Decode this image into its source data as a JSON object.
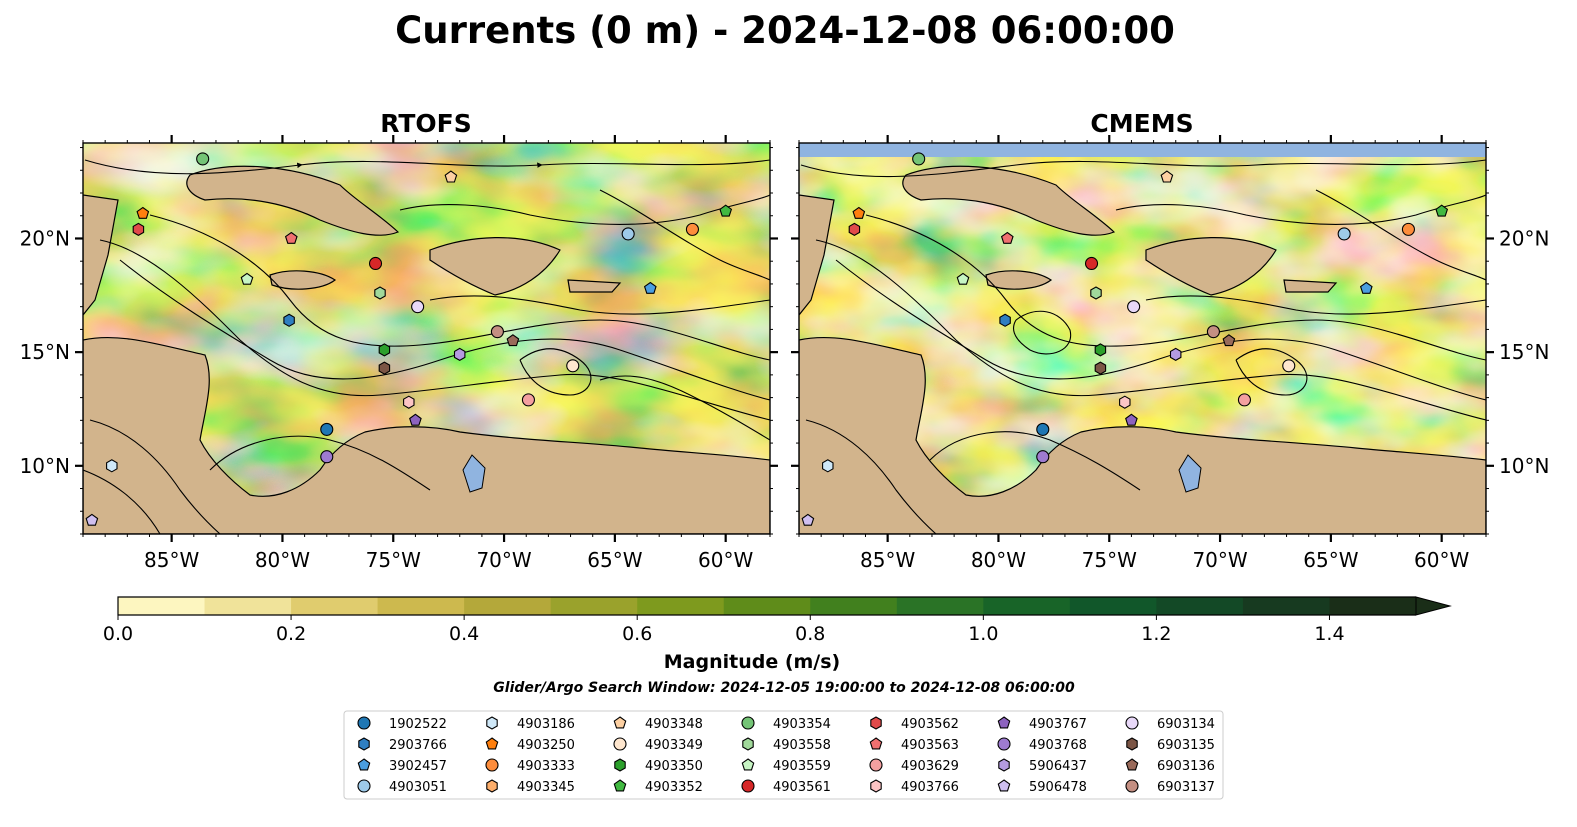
{
  "figure": {
    "suptitle": "Currents (0 m) - 2024-12-08 06:00:00"
  },
  "colors": {
    "land": "#d2b48c",
    "lake": "#90b4e0",
    "river": "#9fb8d8",
    "background": "#fffbd0"
  },
  "chart_data": [
    {
      "type": "heatmap",
      "title": "RTOFS",
      "xlim": [
        -89.0,
        -58.0
      ],
      "ylim": [
        7.0,
        24.2
      ],
      "xtick_values": [
        -85,
        -80,
        -75,
        -70,
        -65,
        -60
      ],
      "xticks": [
        "85°W",
        "80°W",
        "75°W",
        "70°W",
        "65°W",
        "60°W"
      ],
      "ytick_values": [
        10,
        15,
        20
      ],
      "yticks": [
        "10°N",
        "15°N",
        "20°N"
      ],
      "ytick_side": "left",
      "overlay": "streamlines",
      "floats": [
        {
          "id": "4903354",
          "lon": -83.6,
          "lat": 23.5
        },
        {
          "id": "4903348",
          "lon": -72.4,
          "lat": 22.7
        },
        {
          "id": "4903250",
          "lon": -86.3,
          "lat": 21.1
        },
        {
          "id": "4903562",
          "lon": -86.5,
          "lat": 20.4
        },
        {
          "id": "4903563",
          "lon": -79.6,
          "lat": 20.0
        },
        {
          "id": "4903352",
          "lon": -60.0,
          "lat": 21.2
        },
        {
          "id": "4903051",
          "lon": -64.4,
          "lat": 20.2
        },
        {
          "id": "4903333",
          "lon": -61.5,
          "lat": 20.4
        },
        {
          "id": "3902457",
          "lon": -63.4,
          "lat": 17.8
        },
        {
          "id": "4903561",
          "lon": -75.8,
          "lat": 18.9
        },
        {
          "id": "4903559",
          "lon": -81.6,
          "lat": 18.2
        },
        {
          "id": "4903558",
          "lon": -75.6,
          "lat": 17.6
        },
        {
          "id": "6903134",
          "lon": -73.9,
          "lat": 17.0
        },
        {
          "id": "2903766",
          "lon": -79.7,
          "lat": 16.4
        },
        {
          "id": "6903137",
          "lon": -70.3,
          "lat": 15.9
        },
        {
          "id": "6903136",
          "lon": -69.6,
          "lat": 15.5
        },
        {
          "id": "4903350",
          "lon": -75.4,
          "lat": 15.1
        },
        {
          "id": "5906437",
          "lon": -72.0,
          "lat": 14.9
        },
        {
          "id": "6903135",
          "lon": -75.4,
          "lat": 14.3
        },
        {
          "id": "4903349",
          "lon": -66.9,
          "lat": 14.4
        },
        {
          "id": "4903766",
          "lon": -74.3,
          "lat": 12.8
        },
        {
          "id": "4903629",
          "lon": -68.9,
          "lat": 12.9
        },
        {
          "id": "4903767",
          "lon": -74.0,
          "lat": 12.0
        },
        {
          "id": "1902522",
          "lon": -78.0,
          "lat": 11.6
        },
        {
          "id": "4903768",
          "lon": -78.0,
          "lat": 10.4
        },
        {
          "id": "4903186",
          "lon": -87.7,
          "lat": 10.0
        },
        {
          "id": "5906478",
          "lon": -88.6,
          "lat": 7.6
        }
      ]
    },
    {
      "type": "heatmap",
      "title": "CMEMS",
      "xlim": [
        -89.0,
        -58.0
      ],
      "ylim": [
        7.0,
        24.2
      ],
      "xtick_values": [
        -85,
        -80,
        -75,
        -70,
        -65,
        -60
      ],
      "xticks": [
        "85°W",
        "80°W",
        "75°W",
        "70°W",
        "65°W",
        "60°W"
      ],
      "ytick_values": [
        10,
        15,
        20
      ],
      "yticks": [
        "10°N",
        "15°N",
        "20°N"
      ],
      "ytick_side": "right",
      "overlay": "streamlines",
      "floats": [
        {
          "id": "4903354",
          "lon": -83.6,
          "lat": 23.5
        },
        {
          "id": "4903348",
          "lon": -72.4,
          "lat": 22.7
        },
        {
          "id": "4903250",
          "lon": -86.3,
          "lat": 21.1
        },
        {
          "id": "4903562",
          "lon": -86.5,
          "lat": 20.4
        },
        {
          "id": "4903563",
          "lon": -79.6,
          "lat": 20.0
        },
        {
          "id": "4903352",
          "lon": -60.0,
          "lat": 21.2
        },
        {
          "id": "4903051",
          "lon": -64.4,
          "lat": 20.2
        },
        {
          "id": "4903333",
          "lon": -61.5,
          "lat": 20.4
        },
        {
          "id": "3902457",
          "lon": -63.4,
          "lat": 17.8
        },
        {
          "id": "4903561",
          "lon": -75.8,
          "lat": 18.9
        },
        {
          "id": "4903559",
          "lon": -81.6,
          "lat": 18.2
        },
        {
          "id": "4903558",
          "lon": -75.6,
          "lat": 17.6
        },
        {
          "id": "6903134",
          "lon": -73.9,
          "lat": 17.0
        },
        {
          "id": "2903766",
          "lon": -79.7,
          "lat": 16.4
        },
        {
          "id": "6903137",
          "lon": -70.3,
          "lat": 15.9
        },
        {
          "id": "6903136",
          "lon": -69.6,
          "lat": 15.5
        },
        {
          "id": "4903350",
          "lon": -75.4,
          "lat": 15.1
        },
        {
          "id": "5906437",
          "lon": -72.0,
          "lat": 14.9
        },
        {
          "id": "6903135",
          "lon": -75.4,
          "lat": 14.3
        },
        {
          "id": "4903349",
          "lon": -66.9,
          "lat": 14.4
        },
        {
          "id": "4903766",
          "lon": -74.3,
          "lat": 12.8
        },
        {
          "id": "4903629",
          "lon": -68.9,
          "lat": 12.9
        },
        {
          "id": "4903767",
          "lon": -74.0,
          "lat": 12.0
        },
        {
          "id": "1902522",
          "lon": -78.0,
          "lat": 11.6
        },
        {
          "id": "4903768",
          "lon": -78.0,
          "lat": 10.4
        },
        {
          "id": "4903186",
          "lon": -87.7,
          "lat": 10.0
        },
        {
          "id": "5906478",
          "lon": -88.6,
          "lat": 7.6
        }
      ]
    }
  ],
  "colorbar": {
    "label": "Magnitude (m/s)",
    "vmin": 0.0,
    "vmax": 1.5,
    "extend": "max",
    "tick_values": [
      0.0,
      0.2,
      0.4,
      0.6,
      0.8,
      1.0,
      1.2,
      1.4
    ],
    "tick_labels": [
      "0.0",
      "0.2",
      "0.4",
      "0.6",
      "0.8",
      "1.0",
      "1.2",
      "1.4"
    ],
    "bin_colors": [
      "#fdf6c0",
      "#f0e39a",
      "#e0cc6e",
      "#cdb94e",
      "#b4a83a",
      "#9aa22c",
      "#7e9a1e",
      "#5f8c1a",
      "#41801e",
      "#2a7326",
      "#186428",
      "#11572a",
      "#134926",
      "#173a20",
      "#1a2e18"
    ]
  },
  "subtitle": "Glider/Argo Search Window: 2024-12-05 19:00:00 to 2024-12-08 06:00:00",
  "legend": {
    "entries": [
      {
        "label": "1902522",
        "marker": "circle",
        "color": "#1f77b4"
      },
      {
        "label": "2903766",
        "marker": "hexagon",
        "color": "#2f7fc1"
      },
      {
        "label": "3902457",
        "marker": "pentagon",
        "color": "#4a9ee0"
      },
      {
        "label": "4903051",
        "marker": "circle",
        "color": "#9ecae9"
      },
      {
        "label": "4903186",
        "marker": "hexagon",
        "color": "#cfe8f8"
      },
      {
        "label": "4903250",
        "marker": "pentagon",
        "color": "#ff7f0e"
      },
      {
        "label": "4903333",
        "marker": "circle",
        "color": "#fd8d3c"
      },
      {
        "label": "4903345",
        "marker": "hexagon",
        "color": "#fdae6b"
      },
      {
        "label": "4903348",
        "marker": "pentagon",
        "color": "#fdd0a2"
      },
      {
        "label": "4903349",
        "marker": "circle",
        "color": "#fee6ce"
      },
      {
        "label": "4903350",
        "marker": "hexagon",
        "color": "#2ca02c"
      },
      {
        "label": "4903352",
        "marker": "pentagon",
        "color": "#41b941"
      },
      {
        "label": "4903354",
        "marker": "circle",
        "color": "#74c476"
      },
      {
        "label": "4903558",
        "marker": "hexagon",
        "color": "#a1d99b"
      },
      {
        "label": "4903559",
        "marker": "pentagon",
        "color": "#c7f5c4"
      },
      {
        "label": "4903561",
        "marker": "circle",
        "color": "#d62728"
      },
      {
        "label": "4903562",
        "marker": "hexagon",
        "color": "#e04a4a"
      },
      {
        "label": "4903563",
        "marker": "pentagon",
        "color": "#f07070"
      },
      {
        "label": "4903629",
        "marker": "circle",
        "color": "#f4a0a0"
      },
      {
        "label": "4903766",
        "marker": "hexagon",
        "color": "#fcc5c5"
      },
      {
        "label": "4903767",
        "marker": "pentagon",
        "color": "#8d63bf"
      },
      {
        "label": "4903768",
        "marker": "circle",
        "color": "#9e7bd0"
      },
      {
        "label": "5906437",
        "marker": "hexagon",
        "color": "#b49be0"
      },
      {
        "label": "5906478",
        "marker": "pentagon",
        "color": "#cfbff0"
      },
      {
        "label": "6903134",
        "marker": "circle",
        "color": "#e8d8f8"
      },
      {
        "label": "6903135",
        "marker": "hexagon",
        "color": "#7b5545"
      },
      {
        "label": "6903136",
        "marker": "pentagon",
        "color": "#9a6a5a"
      },
      {
        "label": "6903137",
        "marker": "circle",
        "color": "#c48f82"
      }
    ]
  }
}
